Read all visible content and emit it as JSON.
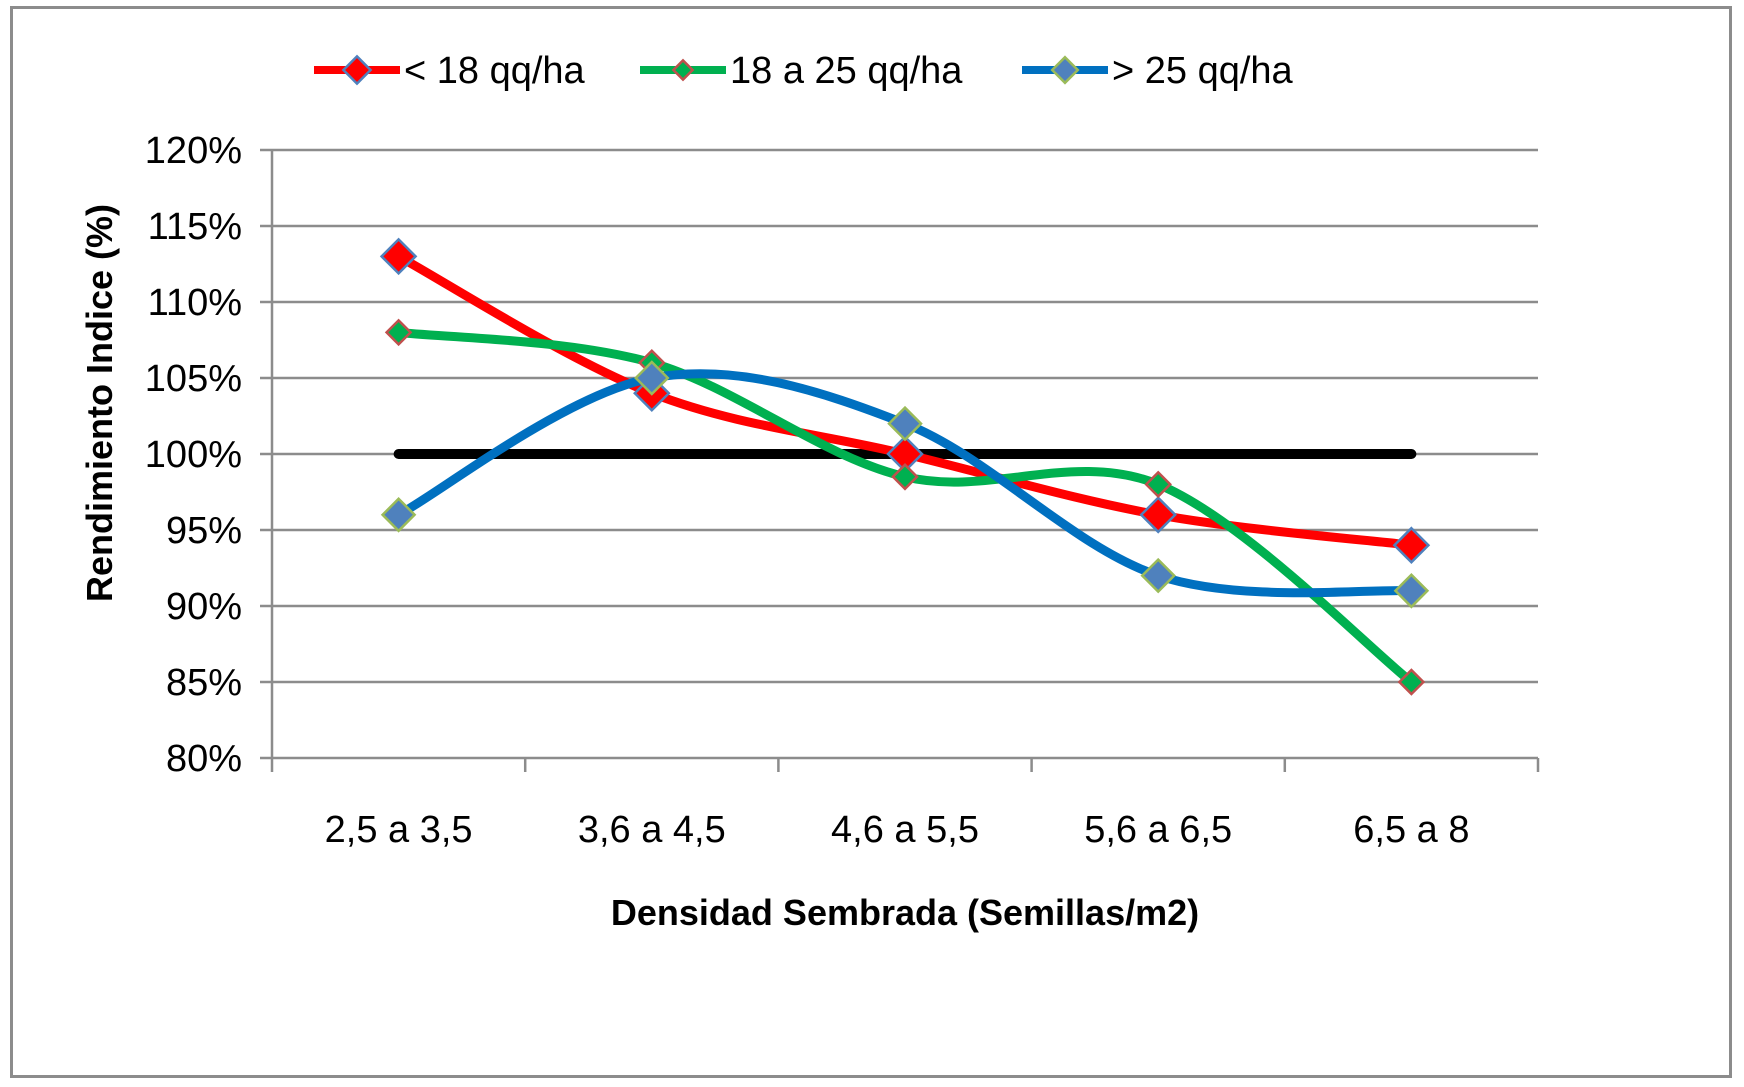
{
  "chart_data": {
    "type": "line",
    "title": "",
    "xlabel": "Densidad Sembrada (Semillas/m2)",
    "ylabel": "Rendimiento Indice (%)",
    "categories": [
      "2,5 a 3,5",
      "3,6 a 4,5",
      "4,6 a 5,5",
      "5,6 a 6,5",
      "6,5 a 8"
    ],
    "ylim": [
      80,
      120
    ],
    "yticks": [
      80,
      85,
      90,
      95,
      100,
      105,
      110,
      115,
      120
    ],
    "ytick_labels": [
      "80%",
      "85%",
      "90%",
      "95%",
      "100%",
      "105%",
      "110%",
      "115%",
      "120%"
    ],
    "grid": "horizontal",
    "legend_position": "top",
    "smooth": true,
    "series": [
      {
        "name": "< 18 qq/ha",
        "values": [
          113,
          104,
          100,
          96,
          94
        ],
        "line_color": "#ff0000",
        "marker_fill": "#ff0000",
        "marker_edge": "#4f81bd",
        "marker_size": 34
      },
      {
        "name": "18 a 25 qq/ha",
        "values": [
          108,
          106,
          98.5,
          98,
          85
        ],
        "line_color": "#00b050",
        "marker_fill": "#00b050",
        "marker_edge": "#c0504d",
        "marker_size": 24
      },
      {
        "name": "> 25 qq/ha",
        "values": [
          96,
          105,
          102,
          92,
          91
        ],
        "line_color": "#0070c0",
        "marker_fill": "#4f81bd",
        "marker_edge": "#9bbb59",
        "marker_size": 32
      }
    ],
    "reference_line": {
      "value": 100,
      "color": "#000000"
    }
  }
}
